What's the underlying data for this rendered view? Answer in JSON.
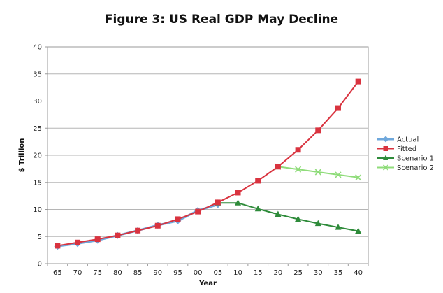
{
  "chart_data": {
    "type": "line",
    "title": "Figure 3: US Real GDP May Decline",
    "xlabel": "Year",
    "ylabel": "$ Trillion",
    "ylim": [
      0,
      40
    ],
    "yticks": [
      0,
      5,
      10,
      15,
      20,
      25,
      30,
      35,
      40
    ],
    "categories": [
      "65",
      "70",
      "75",
      "80",
      "85",
      "90",
      "95",
      "00",
      "05",
      "10",
      "15",
      "20",
      "25",
      "30",
      "35",
      "40"
    ],
    "grid": "horizontal",
    "legend_position": "right",
    "series": [
      {
        "name": "Actual",
        "color": "#6fa8dc",
        "marker": "diamond",
        "values": [
          3.2,
          3.7,
          4.3,
          5.2,
          6.1,
          7.1,
          7.9,
          9.8,
          10.9,
          null,
          null,
          null,
          null,
          null,
          null,
          null
        ]
      },
      {
        "name": "Fitted",
        "color": "#d9333f",
        "marker": "square",
        "values": [
          3.3,
          3.9,
          4.5,
          5.2,
          6.1,
          7.0,
          8.2,
          9.6,
          11.3,
          13.1,
          15.3,
          17.9,
          21.0,
          24.6,
          28.7,
          33.6
        ]
      },
      {
        "name": "Scenario 1",
        "color": "#2e8b3a",
        "marker": "triangle",
        "values": [
          null,
          null,
          null,
          null,
          null,
          null,
          null,
          null,
          11.2,
          11.2,
          10.1,
          9.1,
          8.2,
          7.4,
          6.7,
          6.0
        ]
      },
      {
        "name": "Scenario 2",
        "color": "#8fdc7a",
        "marker": "x",
        "values": [
          null,
          null,
          null,
          null,
          null,
          null,
          null,
          null,
          null,
          null,
          null,
          17.9,
          17.4,
          16.9,
          16.4,
          15.9
        ]
      }
    ]
  }
}
